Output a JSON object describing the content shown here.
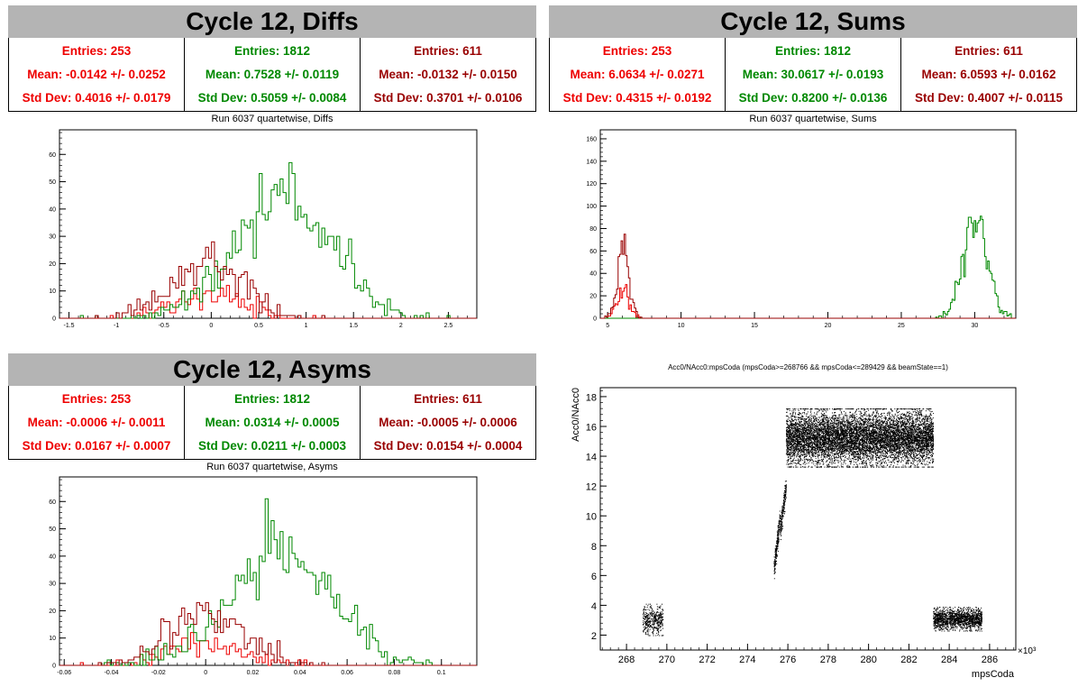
{
  "colors": {
    "red": "#ee0000",
    "green": "#008800",
    "darkred": "#990000"
  },
  "panels": {
    "diffs": {
      "title": "Cycle 12, Diffs",
      "subtitle": "Run 6037 quartetwise, Diffs",
      "stats": [
        {
          "entries": "Entries: 253",
          "mean": "Mean: -0.0142 +/- 0.0252",
          "std": "Std Dev: 0.4016 +/- 0.0179"
        },
        {
          "entries": "Entries: 1812",
          "mean": "Mean: 0.7528 +/- 0.0119",
          "std": "Std Dev: 0.5059 +/- 0.0084"
        },
        {
          "entries": "Entries: 611",
          "mean": "Mean: -0.0132 +/- 0.0150",
          "std": "Std Dev: 0.3701 +/- 0.0106"
        }
      ]
    },
    "sums": {
      "title": "Cycle 12, Sums",
      "subtitle": "Run 6037 quartetwise, Sums",
      "stats": [
        {
          "entries": "Entries: 253",
          "mean": "Mean: 6.0634 +/- 0.0271",
          "std": "Std Dev: 0.4315 +/- 0.0192"
        },
        {
          "entries": "Entries: 1812",
          "mean": "Mean: 30.0617 +/- 0.0193",
          "std": "Std Dev: 0.8200 +/- 0.0136"
        },
        {
          "entries": "Entries: 611",
          "mean": "Mean: 6.0593 +/- 0.0162",
          "std": "Std Dev: 0.4007 +/- 0.0115"
        }
      ]
    },
    "asyms": {
      "title": "Cycle 12, Asyms",
      "subtitle": "Run 6037 quartetwise, Asyms",
      "stats": [
        {
          "entries": "Entries: 253",
          "mean": "Mean: -0.0006 +/- 0.0011",
          "std": "Std Dev: 0.0167 +/- 0.0007"
        },
        {
          "entries": "Entries: 1812",
          "mean": "Mean: 0.0314 +/- 0.0005",
          "std": "Std Dev: 0.0211 +/- 0.0003"
        },
        {
          "entries": "Entries: 611",
          "mean": "Mean: -0.0005 +/- 0.0006",
          "std": "Std Dev: 0.0154 +/- 0.0004"
        }
      ]
    }
  },
  "chart_data": [
    {
      "type": "histogram",
      "title": "Run 6037 quartetwise, Diffs",
      "xlim": [
        -1.6,
        2.8
      ],
      "ylim": [
        0,
        69
      ],
      "xticks": [
        -1.5,
        -1,
        -0.5,
        0,
        0.5,
        1,
        1.5,
        2,
        2.5
      ],
      "xtick_labels": [
        "-1.5",
        "-1",
        "-0.5",
        "0",
        "0.5",
        "1",
        "1.5",
        "2",
        "2.5"
      ],
      "yticks": [
        0,
        10,
        20,
        30,
        40,
        50,
        60
      ],
      "ytick_labels": [
        "0",
        "10",
        "20",
        "30",
        "40",
        "50",
        "60"
      ],
      "series": [
        {
          "name": "Entries: 253",
          "color": "#ee0000",
          "mean": -0.0142,
          "std": 0.4016,
          "entries": 253
        },
        {
          "name": "Entries: 1812",
          "color": "#008800",
          "mean": 0.7528,
          "std": 0.5059,
          "entries": 1812
        },
        {
          "name": "Entries: 611",
          "color": "#990000",
          "mean": -0.0132,
          "std": 0.3701,
          "entries": 611
        }
      ]
    },
    {
      "type": "histogram",
      "title": "Run 6037 quartetwise, Sums",
      "xlim": [
        4.5,
        32.8
      ],
      "ylim": [
        0,
        168
      ],
      "xticks": [
        5,
        10,
        15,
        20,
        25,
        30
      ],
      "xtick_labels": [
        "5",
        "10",
        "15",
        "20",
        "25",
        "30"
      ],
      "yticks": [
        0,
        20,
        40,
        60,
        80,
        100,
        120,
        140,
        160
      ],
      "ytick_labels": [
        "0",
        "20",
        "40",
        "60",
        "80",
        "100",
        "120",
        "140",
        "160"
      ],
      "series": [
        {
          "name": "Entries: 253",
          "color": "#ee0000",
          "mean": 6.0634,
          "std": 0.4315,
          "entries": 253
        },
        {
          "name": "Entries: 1812",
          "color": "#008800",
          "mean": 30.0617,
          "std": 0.82,
          "entries": 1812
        },
        {
          "name": "Entries: 611",
          "color": "#990000",
          "mean": 6.0593,
          "std": 0.4007,
          "entries": 611
        }
      ]
    },
    {
      "type": "histogram",
      "title": "Run 6037 quartetwise, Asyms",
      "xlim": [
        -0.062,
        0.115
      ],
      "ylim": [
        0,
        69
      ],
      "xticks": [
        -0.06,
        -0.04,
        -0.02,
        0,
        0.02,
        0.04,
        0.06,
        0.08,
        0.1
      ],
      "xtick_labels": [
        "-0.06",
        "-0.04",
        "-0.02",
        "0",
        "0.02",
        "0.04",
        "0.06",
        "0.08",
        "0.1"
      ],
      "yticks": [
        0,
        10,
        20,
        30,
        40,
        50,
        60
      ],
      "ytick_labels": [
        "0",
        "10",
        "20",
        "30",
        "40",
        "50",
        "60"
      ],
      "series": [
        {
          "name": "Entries: 253",
          "color": "#ee0000",
          "mean": -0.0006,
          "std": 0.0167,
          "entries": 253
        },
        {
          "name": "Entries: 1812",
          "color": "#008800",
          "mean": 0.0314,
          "std": 0.0211,
          "entries": 1812
        },
        {
          "name": "Entries: 611",
          "color": "#990000",
          "mean": -0.0005,
          "std": 0.0154,
          "entries": 611
        }
      ]
    },
    {
      "type": "scatter",
      "title": "Acc0/NAcc0:mpsCoda (mpsCoda>=268766 && mpsCoda<=289429 && beamState==1)",
      "xlabel": "mpsCoda",
      "ylabel": "Acc0/NAcc0",
      "x_multiplier": "×10³",
      "xlim": [
        266.7,
        287.3
      ],
      "ylim": [
        1,
        18.6
      ],
      "xticks": [
        268,
        270,
        272,
        274,
        276,
        278,
        280,
        282,
        284,
        286
      ],
      "xtick_labels": [
        "268",
        "270",
        "272",
        "274",
        "276",
        "278",
        "280",
        "282",
        "284",
        "286"
      ],
      "yticks": [
        2,
        4,
        6,
        8,
        10,
        12,
        14,
        16,
        18
      ],
      "ytick_labels": [
        "2",
        "4",
        "6",
        "8",
        "10",
        "12",
        "14",
        "16",
        "18"
      ],
      "clusters": [
        {
          "x": [
            268.8,
            269.8
          ],
          "y": [
            2.0,
            4.1
          ]
        },
        {
          "x": [
            275.3,
            275.6
          ],
          "y": [
            6.5,
            9.8
          ]
        },
        {
          "x": [
            275.6,
            275.9
          ],
          "y": [
            9.0,
            12.0
          ]
        },
        {
          "x": [
            275.9,
            283.2
          ],
          "y": [
            13.3,
            17.2
          ]
        },
        {
          "x": [
            283.2,
            285.6
          ],
          "y": [
            2.3,
            3.9
          ]
        }
      ]
    }
  ]
}
